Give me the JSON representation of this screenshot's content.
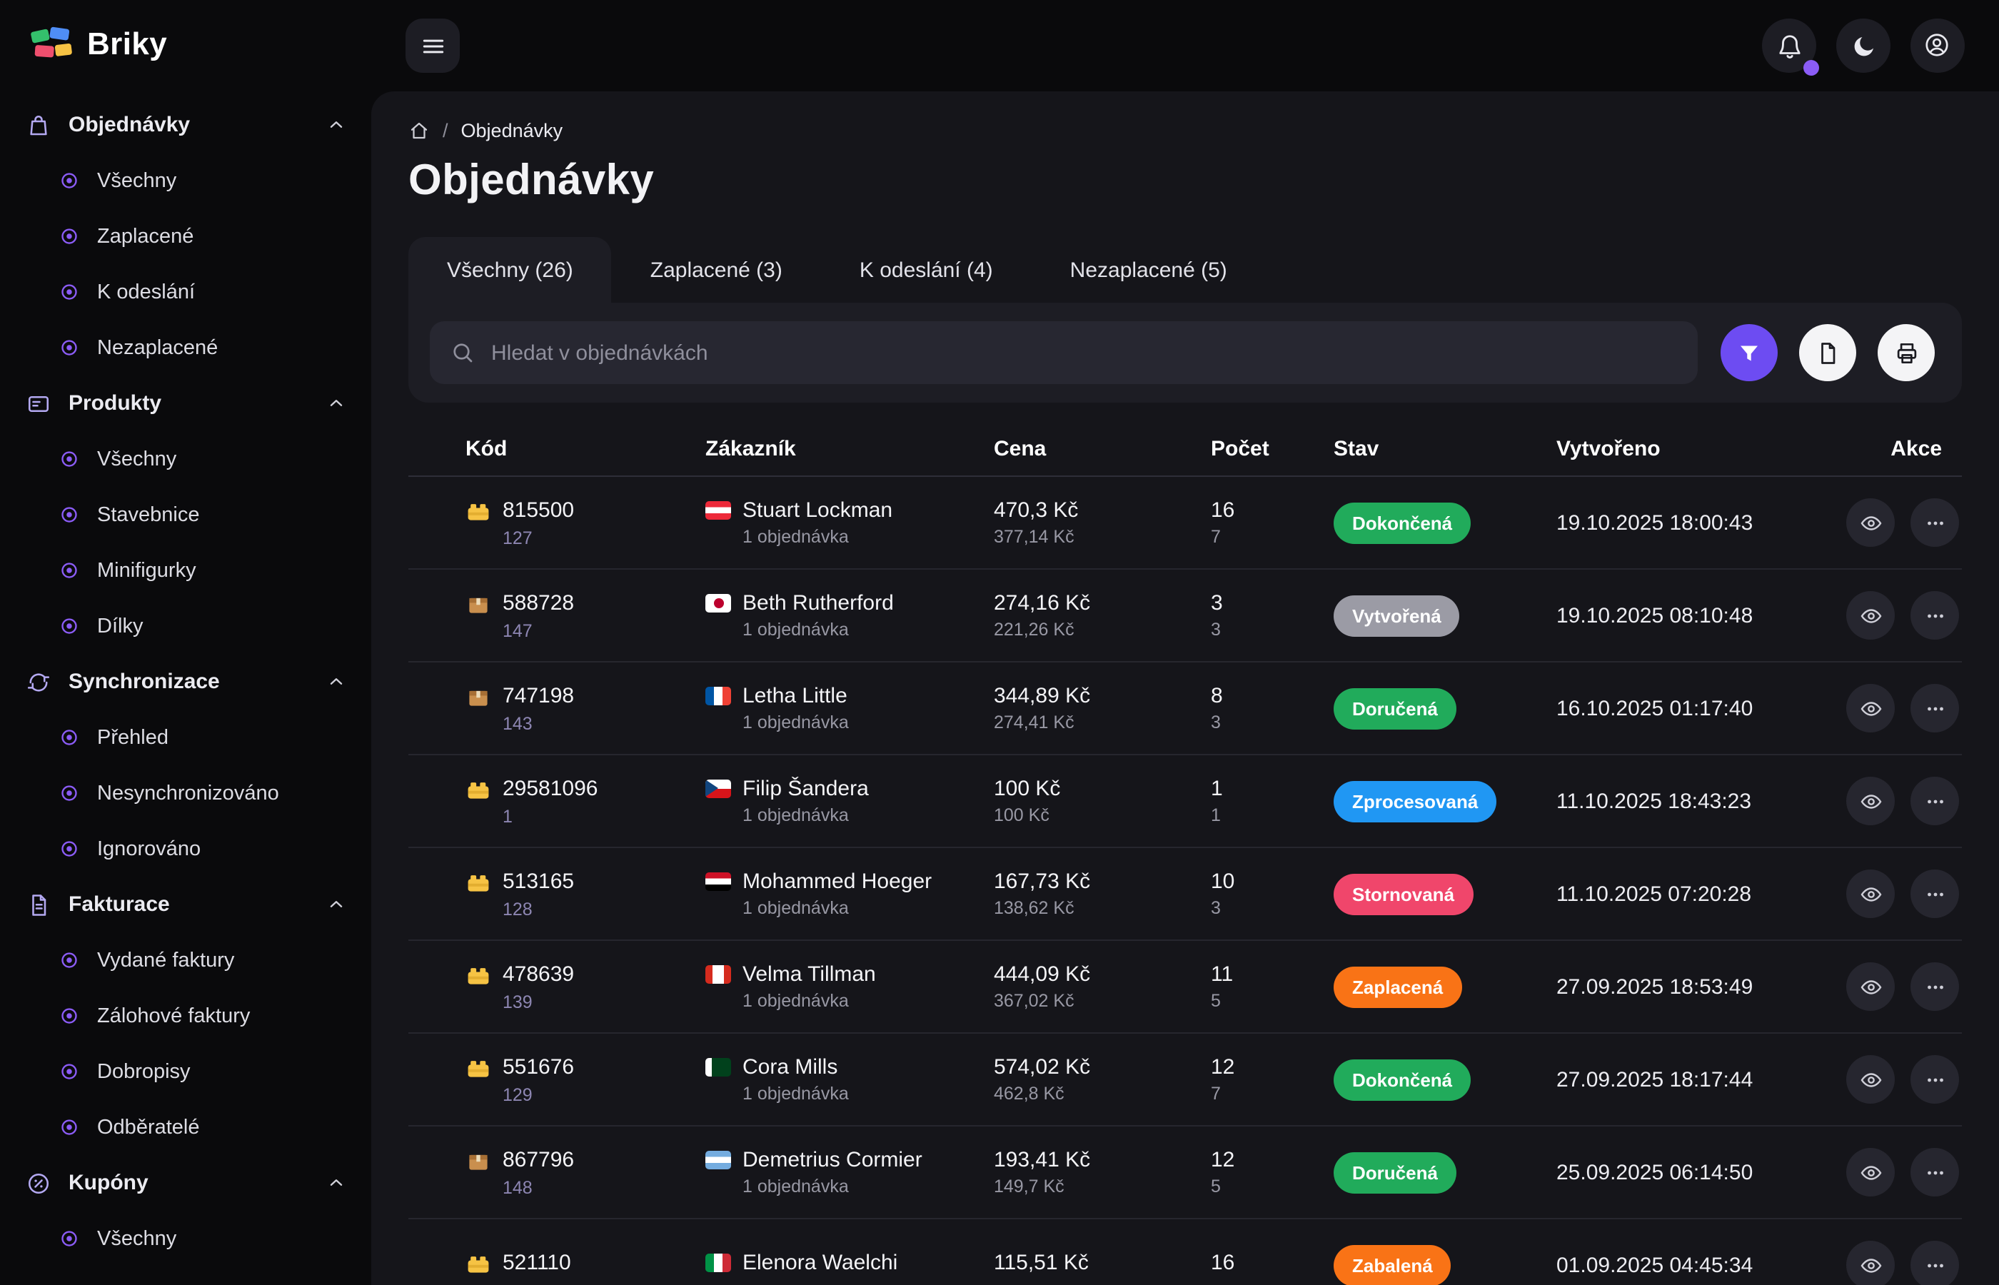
{
  "app": {
    "accent": "#6d4cf2",
    "notification_dot_color": "#8b5cf6",
    "status_colors": {
      "green": "#21ab5b",
      "gray": "#9b9ba5",
      "blue": "#2097f3",
      "red": "#f0466b",
      "orange": "#f97316"
    }
  },
  "sidebar": {
    "logo": "Briky",
    "sections": [
      {
        "label": "Objednávky",
        "icon": "bag-icon",
        "expanded": true,
        "items": [
          "Všechny",
          "Zaplacené",
          "K odeslání",
          "Nezaplacené"
        ]
      },
      {
        "label": "Produkty",
        "icon": "product-icon",
        "expanded": true,
        "items": [
          "Všechny",
          "Stavebnice",
          "Minifigurky",
          "Dílky"
        ]
      },
      {
        "label": "Synchronizace",
        "icon": "sync-icon",
        "expanded": true,
        "items": [
          "Přehled",
          "Nesynchronizováno",
          "Ignorováno"
        ]
      },
      {
        "label": "Fakturace",
        "icon": "invoice-icon",
        "expanded": true,
        "items": [
          "Vydané faktury",
          "Zálohové faktury",
          "Dobropisy",
          "Odběratelé"
        ]
      },
      {
        "label": "Kupóny",
        "icon": "coupon-icon",
        "expanded": true,
        "items": [
          "Všechny"
        ]
      }
    ]
  },
  "breadcrumb": {
    "current": "Objednávky"
  },
  "page": {
    "title": "Objednávky"
  },
  "tabs": [
    {
      "label": "Všechny (26)",
      "active": true
    },
    {
      "label": "Zaplacené (3)",
      "active": false
    },
    {
      "label": "K odeslání (4)",
      "active": false
    },
    {
      "label": "Nezaplacené (5)",
      "active": false
    }
  ],
  "search": {
    "placeholder": "Hledat v objednávkách"
  },
  "table": {
    "columns": [
      "Kód",
      "Zákazník",
      "Cena",
      "Počet",
      "Stav",
      "Vytvořeno",
      "Akce"
    ],
    "rows": [
      {
        "icon": "brick",
        "code": "815500",
        "code_sub": "127",
        "flag": "at",
        "customer": "Stuart Lockman",
        "customer_sub": "1 objednávka",
        "price": "470,3 Kč",
        "price_sub": "377,14 Kč",
        "count": "16",
        "count_sub": "7",
        "status": "Dokončená",
        "status_color": "#21ab5b",
        "created": "19.10.2025 18:00:43"
      },
      {
        "icon": "box",
        "code": "588728",
        "code_sub": "147",
        "flag": "jp",
        "customer": "Beth Rutherford",
        "customer_sub": "1 objednávka",
        "price": "274,16 Kč",
        "price_sub": "221,26 Kč",
        "count": "3",
        "count_sub": "3",
        "status": "Vytvořená",
        "status_color": "#9b9ba5",
        "created": "19.10.2025 08:10:48"
      },
      {
        "icon": "box",
        "code": "747198",
        "code_sub": "143",
        "flag": "fr",
        "customer": "Letha Little",
        "customer_sub": "1 objednávka",
        "price": "344,89 Kč",
        "price_sub": "274,41 Kč",
        "count": "8",
        "count_sub": "3",
        "status": "Doručená",
        "status_color": "#21ab5b",
        "created": "16.10.2025 01:17:40"
      },
      {
        "icon": "brick",
        "code": "29581096",
        "code_sub": "1",
        "flag": "cz",
        "customer": "Filip Šandera",
        "customer_sub": "1 objednávka",
        "price": "100 Kč",
        "price_sub": "100 Kč",
        "count": "1",
        "count_sub": "1",
        "status": "Zprocesovaná",
        "status_color": "#2097f3",
        "created": "11.10.2025 18:43:23"
      },
      {
        "icon": "brick",
        "code": "513165",
        "code_sub": "128",
        "flag": "ye",
        "customer": "Mohammed Hoeger",
        "customer_sub": "1 objednávka",
        "price": "167,73 Kč",
        "price_sub": "138,62 Kč",
        "count": "10",
        "count_sub": "3",
        "status": "Stornovaná",
        "status_color": "#f0466b",
        "created": "11.10.2025 07:20:28"
      },
      {
        "icon": "brick",
        "code": "478639",
        "code_sub": "139",
        "flag": "ca",
        "customer": "Velma Tillman",
        "customer_sub": "1 objednávka",
        "price": "444,09 Kč",
        "price_sub": "367,02 Kč",
        "count": "11",
        "count_sub": "5",
        "status": "Zaplacená",
        "status_color": "#f97316",
        "created": "27.09.2025 18:53:49"
      },
      {
        "icon": "brick",
        "code": "551676",
        "code_sub": "129",
        "flag": "pk",
        "customer": "Cora Mills",
        "customer_sub": "1 objednávka",
        "price": "574,02 Kč",
        "price_sub": "462,8 Kč",
        "count": "12",
        "count_sub": "7",
        "status": "Dokončená",
        "status_color": "#21ab5b",
        "created": "27.09.2025 18:17:44"
      },
      {
        "icon": "box",
        "code": "867796",
        "code_sub": "148",
        "flag": "ar",
        "customer": "Demetrius Cormier",
        "customer_sub": "1 objednávka",
        "price": "193,41 Kč",
        "price_sub": "149,7 Kč",
        "count": "12",
        "count_sub": "5",
        "status": "Doručená",
        "status_color": "#21ab5b",
        "created": "25.09.2025 06:14:50"
      },
      {
        "icon": "brick",
        "code": "521110",
        "code_sub": "",
        "flag": "it",
        "customer": "Elenora Waelchi",
        "customer_sub": "",
        "price": "115,51 Kč",
        "price_sub": "",
        "count": "16",
        "count_sub": "",
        "status": "Zabalená",
        "status_color": "#f97316",
        "created": "01.09.2025 04:45:34"
      }
    ]
  }
}
